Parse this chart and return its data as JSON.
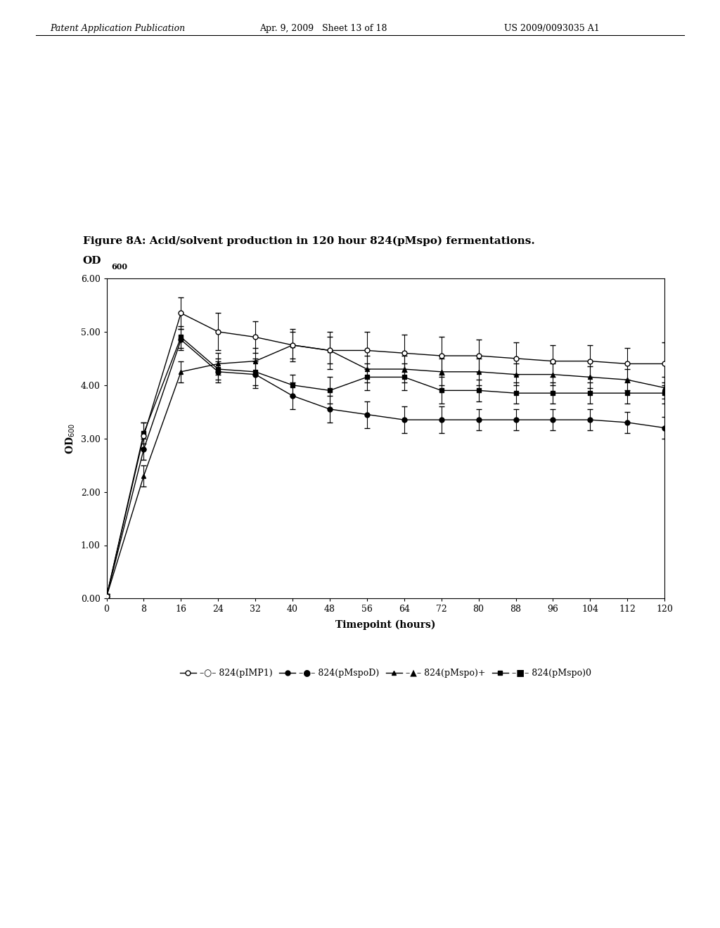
{
  "title": "Figure 8A: Acid/solvent production in 120 hour 824(pMspo) fermentations.",
  "xlabel": "Timepoint (hours)",
  "xticks": [
    0,
    8,
    16,
    24,
    32,
    40,
    48,
    56,
    64,
    72,
    80,
    88,
    96,
    104,
    112,
    120
  ],
  "yticks": [
    0.0,
    1.0,
    2.0,
    3.0,
    4.0,
    5.0,
    6.0
  ],
  "ylim": [
    0.0,
    6.0
  ],
  "xlim": [
    0,
    120
  ],
  "series": [
    {
      "legend_label": "824(pIMP1)",
      "marker": "o",
      "fillstyle": "none",
      "color": "#000000",
      "x": [
        0,
        8,
        16,
        24,
        32,
        40,
        48,
        56,
        64,
        72,
        80,
        88,
        96,
        104,
        112,
        120
      ],
      "y": [
        0.04,
        3.05,
        5.35,
        5.0,
        4.9,
        4.75,
        4.65,
        4.65,
        4.6,
        4.55,
        4.55,
        4.5,
        4.45,
        4.45,
        4.4,
        4.4
      ],
      "yerr": [
        0.04,
        0.25,
        0.3,
        0.35,
        0.3,
        0.3,
        0.35,
        0.35,
        0.35,
        0.35,
        0.3,
        0.3,
        0.3,
        0.3,
        0.3,
        0.4
      ]
    },
    {
      "legend_label": "824(pMspoD)",
      "marker": "o",
      "fillstyle": "full",
      "color": "#000000",
      "x": [
        0,
        8,
        16,
        24,
        32,
        40,
        48,
        56,
        64,
        72,
        80,
        88,
        96,
        104,
        112,
        120
      ],
      "y": [
        0.04,
        2.8,
        4.85,
        4.25,
        4.2,
        3.8,
        3.55,
        3.45,
        3.35,
        3.35,
        3.35,
        3.35,
        3.35,
        3.35,
        3.3,
        3.2
      ],
      "yerr": [
        0.04,
        0.2,
        0.2,
        0.2,
        0.25,
        0.25,
        0.25,
        0.25,
        0.25,
        0.25,
        0.2,
        0.2,
        0.2,
        0.2,
        0.2,
        0.2
      ]
    },
    {
      "legend_label": "824(pMspo)+",
      "marker": "^",
      "fillstyle": "full",
      "color": "#000000",
      "x": [
        0,
        8,
        16,
        24,
        32,
        40,
        48,
        56,
        64,
        72,
        80,
        88,
        96,
        104,
        112,
        120
      ],
      "y": [
        0.04,
        2.3,
        4.25,
        4.4,
        4.45,
        4.75,
        4.65,
        4.3,
        4.3,
        4.25,
        4.25,
        4.2,
        4.2,
        4.15,
        4.1,
        3.95
      ],
      "yerr": [
        0.04,
        0.2,
        0.2,
        0.2,
        0.25,
        0.25,
        0.25,
        0.25,
        0.25,
        0.25,
        0.25,
        0.2,
        0.2,
        0.2,
        0.2,
        0.2
      ]
    },
    {
      "legend_label": "824(pMspo)0",
      "marker": "s",
      "fillstyle": "full",
      "color": "#000000",
      "x": [
        0,
        8,
        16,
        24,
        32,
        40,
        48,
        56,
        64,
        72,
        80,
        88,
        96,
        104,
        112,
        120
      ],
      "y": [
        0.04,
        3.1,
        4.9,
        4.3,
        4.25,
        4.0,
        3.9,
        4.15,
        4.15,
        3.9,
        3.9,
        3.85,
        3.85,
        3.85,
        3.85,
        3.85
      ],
      "yerr": [
        0.04,
        0.2,
        0.2,
        0.2,
        0.25,
        0.2,
        0.25,
        0.25,
        0.25,
        0.25,
        0.2,
        0.2,
        0.2,
        0.2,
        0.2,
        0.2
      ]
    }
  ],
  "header_left": "Patent Application Publication",
  "header_center": "Apr. 9, 2009   Sheet 13 of 18",
  "header_right": "US 2009/0093035 A1",
  "background_color": "#ffffff",
  "figure_width": 10.24,
  "figure_height": 13.2,
  "dpi": 100
}
